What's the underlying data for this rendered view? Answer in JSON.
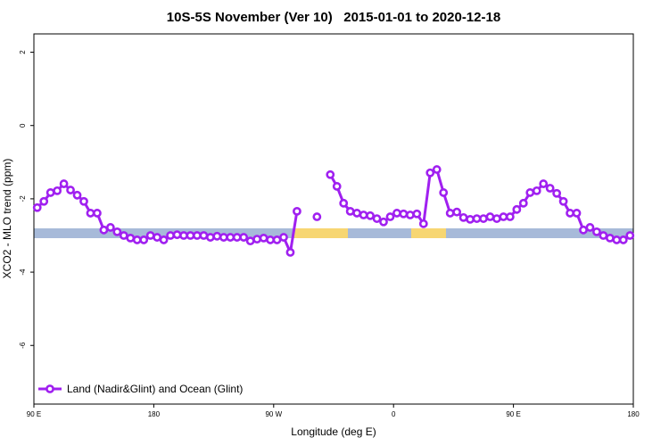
{
  "chart_data": {
    "type": "line",
    "title": "10S-5S November (Ver 10)   2015-01-01 to 2020-12-18",
    "xlabel": "Longitude (deg E)",
    "ylabel": "XCO2 - MLO trend (ppm)",
    "xlim": [
      90,
      540
    ],
    "ylim": [
      -7.6,
      2.5
    ],
    "xticks": [
      {
        "value": 90,
        "label": "90 E"
      },
      180,
      {
        "value": 270,
        "label": "90 W"
      },
      {
        "value": 360,
        "label": "0"
      },
      {
        "value": 450,
        "label": "90 E"
      },
      {
        "value": 540,
        "label": "180"
      }
    ],
    "yticks": [
      2,
      0,
      -2,
      -4,
      -6
    ],
    "legend": "bottom-left",
    "x": [
      92.5,
      97.5,
      102.5,
      107.5,
      112.5,
      117.5,
      122.5,
      127.5,
      132.5,
      137.5,
      142.5,
      147.5,
      152.5,
      157.5,
      162.5,
      167.5,
      172.5,
      177.5,
      182.5,
      187.5,
      192.5,
      197.5,
      202.5,
      207.5,
      212.5,
      217.5,
      222.5,
      227.5,
      232.5,
      237.5,
      242.5,
      247.5,
      252.5,
      257.5,
      262.5,
      267.5,
      272.5,
      277.5,
      282.5,
      287.5,
      292.5,
      297.5,
      302.5,
      307.5,
      312.5,
      317.5,
      322.5,
      327.5,
      332.5,
      337.5,
      342.5,
      347.5,
      352.5,
      357.5,
      362.5,
      367.5,
      372.5,
      377.5,
      382.5,
      387.5,
      392.5,
      397.5,
      402.5,
      407.5,
      412.5,
      417.5,
      422.5,
      427.5,
      432.5,
      437.5,
      442.5,
      447.5,
      452.5,
      457.5,
      462.5,
      467.5,
      472.5,
      477.5,
      482.5,
      487.5,
      492.5,
      497.5,
      502.5,
      507.5,
      512.5,
      517.5,
      522.5,
      527.5,
      532.5,
      537.5
    ],
    "series": [
      {
        "name": "Land (Nadir&Glint) and Ocean (Glint)",
        "color": "#a020f0",
        "values": [
          -2.24,
          -2.07,
          -1.83,
          -1.78,
          -1.59,
          -1.76,
          -1.9,
          -2.07,
          -2.39,
          -2.39,
          -2.85,
          -2.78,
          -2.9,
          -3.0,
          -3.07,
          -3.12,
          -3.12,
          -3.0,
          -3.05,
          -3.12,
          -3.0,
          -2.98,
          -3.0,
          -3.0,
          -3.0,
          -3.0,
          -3.05,
          -3.02,
          -3.05,
          -3.05,
          -3.05,
          -3.05,
          -3.15,
          -3.1,
          -3.07,
          -3.12,
          -3.12,
          -3.05,
          -3.46,
          -2.34,
          null,
          null,
          -2.49,
          null,
          -1.34,
          -1.66,
          -2.12,
          -2.34,
          -2.39,
          -2.44,
          -2.46,
          -2.54,
          -2.63,
          -2.49,
          -2.39,
          -2.41,
          -2.44,
          -2.41,
          -2.68,
          -1.29,
          -1.2,
          -1.83,
          -2.39,
          -2.36,
          -2.51,
          -2.56,
          -2.54,
          -2.54,
          -2.49,
          -2.54,
          -2.49,
          -2.49,
          -2.29,
          -2.12,
          -1.83,
          -1.78,
          -1.59,
          -1.71,
          -1.85,
          -2.07,
          -2.39,
          -2.39,
          -2.85,
          -2.78,
          -2.9,
          -3.0,
          -3.07,
          -3.12,
          -3.12,
          -3.0
        ]
      }
    ]
  }
}
